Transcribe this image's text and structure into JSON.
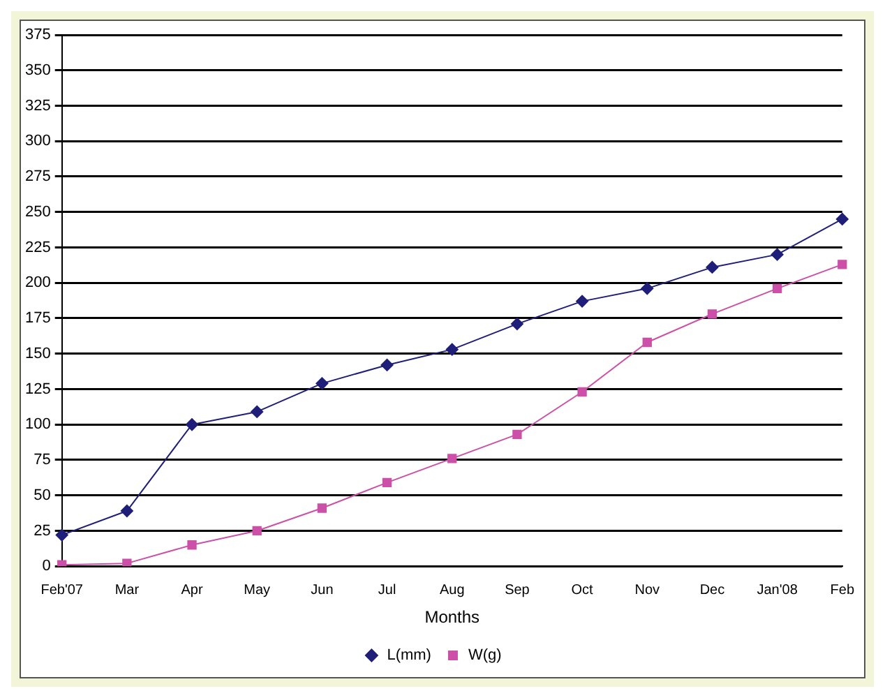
{
  "chart_data": {
    "type": "line",
    "xlabel": "Months",
    "categories": [
      "Feb'07",
      "Mar",
      "Apr",
      "May",
      "Jun",
      "Jul",
      "Aug",
      "Sep",
      "Oct",
      "Nov",
      "Dec",
      "Jan'08",
      "Feb"
    ],
    "series": [
      {
        "name": "L(mm)",
        "color": "#1f1f7a",
        "marker": "diamond",
        "values": [
          22,
          39,
          100,
          109,
          129,
          142,
          153,
          171,
          187,
          196,
          211,
          220,
          245
        ]
      },
      {
        "name": "W(g)",
        "color": "#cc4fa8",
        "marker": "square",
        "values": [
          1,
          2,
          15,
          25,
          41,
          59,
          76,
          93,
          123,
          158,
          178,
          196,
          213
        ]
      }
    ],
    "ylim": [
      0,
      375
    ],
    "yticks": [
      0,
      25,
      50,
      75,
      100,
      125,
      150,
      175,
      200,
      225,
      250,
      275,
      300,
      325,
      350,
      375
    ],
    "grid": "y",
    "legend": "bottom",
    "line_style": "solid"
  }
}
